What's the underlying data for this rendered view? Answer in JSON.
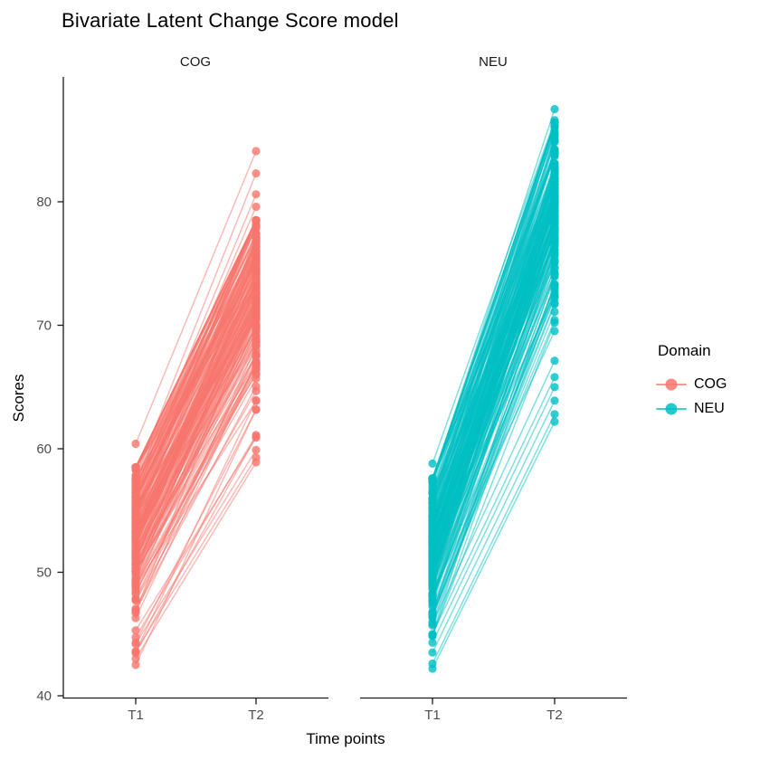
{
  "title": "Bivariate Latent Change Score model",
  "facet_labels": [
    "COG",
    "NEU"
  ],
  "axes": {
    "x_title": "Time points",
    "y_title": "Scores",
    "x_ticks": [
      "T1",
      "T2"
    ],
    "y_ticks": [
      "40",
      "50",
      "60",
      "70",
      "80"
    ],
    "y_domain": [
      40,
      90
    ]
  },
  "legend": {
    "title": "Domain",
    "items": [
      {
        "label": "COG",
        "color": "#F8766D"
      },
      {
        "label": "NEU",
        "color": "#00BFC4"
      }
    ]
  },
  "chart_data": {
    "type": "line",
    "description": "Faceted spaghetti plot: one line per subject connecting individual scores at time T1 to time T2, separate panels per domain (COG, NEU). Dense overlapping semi-transparent lines with dots at both ends.",
    "categories": [
      "T1",
      "T2"
    ],
    "title": "Bivariate Latent Change Score model",
    "xlabel": "Time points",
    "ylabel": "Scores",
    "ylim": [
      40,
      90
    ],
    "grid": false,
    "legend_position": "right",
    "facets": [
      {
        "name": "COG",
        "color": "#F8766D",
        "n_subjects": 200,
        "t1": {
          "mean": 53.2,
          "sd": 3.5,
          "min": 42.5,
          "max": 58.5
        },
        "change": {
          "mean": 20.0,
          "sd": 2.2
        },
        "t2": {
          "min": 61.0,
          "max": 78.5
        },
        "outliers": [
          {
            "t1": 60.4,
            "t2": 84.1
          },
          {
            "t1": 57.8,
            "t2": 82.3
          },
          {
            "t1": 57.2,
            "t2": 80.6
          },
          {
            "t1": 56.8,
            "t2": 79.6
          },
          {
            "t1": 43.0,
            "t2": 58.9
          },
          {
            "t1": 43.6,
            "t2": 59.3
          },
          {
            "t1": 44.2,
            "t2": 59.9
          },
          {
            "t1": 45.3,
            "t2": 60.9
          }
        ]
      },
      {
        "name": "NEU",
        "color": "#00BFC4",
        "n_subjects": 200,
        "t1": {
          "mean": 52.4,
          "sd": 3.5,
          "min": 42.0,
          "max": 57.6
        },
        "change": {
          "mean": 27.3,
          "sd": 2.4
        },
        "t2": {
          "min": 62.0,
          "max": 86.4
        },
        "outliers": [
          {
            "t1": 57.4,
            "t2": 87.5
          },
          {
            "t1": 58.8,
            "t2": 86.6
          },
          {
            "t1": 42.2,
            "t2": 62.2
          },
          {
            "t1": 42.6,
            "t2": 62.8
          },
          {
            "t1": 43.5,
            "t2": 63.9
          },
          {
            "t1": 44.3,
            "t2": 65.0
          },
          {
            "t1": 45.0,
            "t2": 65.8
          }
        ]
      }
    ]
  }
}
